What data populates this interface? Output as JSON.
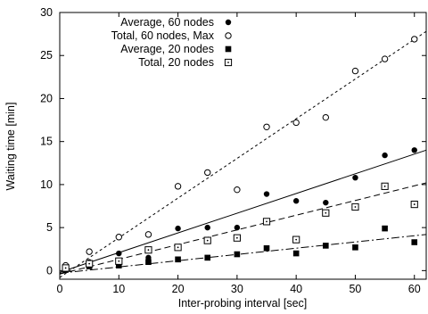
{
  "chart_data": {
    "type": "scatter",
    "xlabel": "Inter-probing interval [sec]",
    "ylabel": "Waiting time [min]",
    "xlim": [
      0,
      62
    ],
    "ylim": [
      -1,
      30
    ],
    "xticks": [
      0,
      10,
      20,
      30,
      40,
      50,
      60
    ],
    "yticks": [
      0,
      5,
      10,
      15,
      20,
      25,
      30
    ],
    "grid": false,
    "legend_position": "top-right",
    "series": [
      {
        "name": "Average, 60 nodes",
        "marker": "filled-circle",
        "x": [
          1,
          5,
          10,
          15,
          20,
          25,
          30,
          35,
          40,
          45,
          50,
          55,
          60
        ],
        "y": [
          0.2,
          1.0,
          2.0,
          1.5,
          4.9,
          5.0,
          5.0,
          8.9,
          8.1,
          7.9,
          10.8,
          13.4,
          14.0
        ],
        "fit": {
          "style": "solid",
          "x": [
            0,
            62
          ],
          "y": [
            -0.2,
            14.0
          ]
        }
      },
      {
        "name": "Total, 60 nodes, Max",
        "marker": "open-circle",
        "x": [
          1,
          5,
          10,
          15,
          20,
          25,
          30,
          35,
          40,
          45,
          50,
          55,
          60
        ],
        "y": [
          0.6,
          2.2,
          3.9,
          4.2,
          9.8,
          11.4,
          9.4,
          16.7,
          17.2,
          17.8,
          23.2,
          24.6,
          26.9
        ],
        "fit": {
          "style": "dotted",
          "x": [
            0,
            62
          ],
          "y": [
            -0.8,
            27.8
          ]
        }
      },
      {
        "name": "Average, 20 nodes",
        "marker": "filled-square",
        "x": [
          1,
          5,
          10,
          15,
          20,
          25,
          30,
          35,
          40,
          45,
          50,
          55,
          60
        ],
        "y": [
          0.1,
          0.5,
          0.6,
          1.0,
          1.3,
          1.5,
          1.9,
          2.6,
          2.0,
          2.9,
          2.7,
          4.9,
          3.3
        ],
        "fit": {
          "style": "dash-dot",
          "x": [
            0,
            62
          ],
          "y": [
            -0.3,
            4.2
          ]
        }
      },
      {
        "name": "Total, 20 nodes",
        "marker": "open-square",
        "x": [
          1,
          5,
          10,
          15,
          20,
          25,
          30,
          35,
          40,
          45,
          50,
          55,
          60
        ],
        "y": [
          0.3,
          0.8,
          1.1,
          2.4,
          2.7,
          3.5,
          3.8,
          5.7,
          3.6,
          6.7,
          7.4,
          9.8,
          7.7
        ],
        "fit": {
          "style": "dashed",
          "x": [
            0,
            62
          ],
          "y": [
            -0.4,
            10.2
          ]
        }
      }
    ]
  }
}
